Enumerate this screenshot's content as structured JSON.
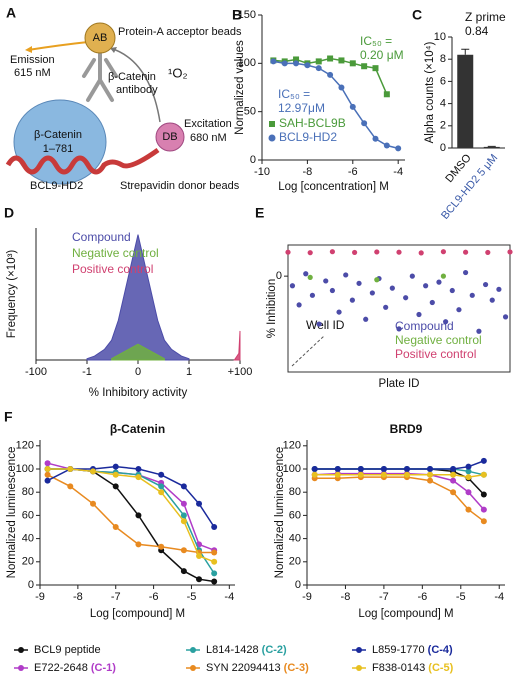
{
  "panel_labels": [
    "A",
    "B",
    "C",
    "D",
    "E",
    "F"
  ],
  "diagram": {
    "acceptor_bead": "AB",
    "acceptor_label": "Protein-A acceptor beads",
    "emission": [
      "Emission",
      "615 nM"
    ],
    "antibody": [
      "β-Catenin",
      "antibody"
    ],
    "singlet_oxygen": "¹O₂",
    "protein": [
      "β-Catenin",
      "1–781"
    ],
    "donor_bead": "DB",
    "excitation": [
      "Excitation",
      "680 nM"
    ],
    "peptide": "BCL9-HD2",
    "donor_label": "Strepavidin donor beads"
  },
  "chart_data": [
    {
      "type": "line",
      "xlabel": "Log [concentration] M",
      "ylabel": "Normalized values",
      "x": [
        -9.5,
        -9,
        -8.5,
        -8,
        -7.5,
        -7,
        -6.5,
        -6,
        -5.5,
        -5,
        -4.5,
        -4
      ],
      "series": [
        {
          "name": "SAH-BCL9B",
          "color": "#4a9a3a",
          "marker": "square",
          "values": [
            103,
            102,
            104,
            100,
            102,
            105,
            103,
            100,
            97,
            95,
            68,
            null
          ]
        },
        {
          "name": "BCL9-HD2",
          "color": "#4a70b8",
          "marker": "circle",
          "values": [
            102,
            100,
            100,
            98,
            95,
            88,
            75,
            55,
            38,
            22,
            15,
            12
          ]
        }
      ],
      "annotations": [
        {
          "text": [
            "IC₅₀ =",
            "0.20 μM"
          ],
          "color": "#4a9a3a"
        },
        {
          "text": [
            "IC₅₀ =",
            "12.97μM"
          ],
          "color": "#4a70b8"
        }
      ],
      "xlim": [
        -10,
        -3.7
      ],
      "xticks": [
        -10,
        -8,
        -6,
        -4
      ],
      "ylim": [
        0,
        150
      ],
      "yticks": [
        0,
        50,
        100,
        150
      ],
      "legend": "lower left"
    },
    {
      "type": "bar",
      "ylabel": "Alpha counts (×10⁴)",
      "categories": [
        "DMSO",
        "BCL9-HD2 5 μM"
      ],
      "category_colors": [
        "#111111",
        "#3a5aa8"
      ],
      "values": [
        8.4,
        0.1
      ],
      "errors": [
        0.5,
        0.05
      ],
      "color": "#333333",
      "annotations": [
        {
          "text": [
            "Z prime",
            "0.84"
          ],
          "color": "#111111"
        }
      ],
      "ylim": [
        0,
        10
      ],
      "yticks": [
        0,
        2,
        4,
        6,
        8,
        10
      ]
    },
    {
      "type": "area",
      "xlabel": "% Inhibitory activity",
      "ylabel": "Frequency (×10³)",
      "xscale": "symlog",
      "series": [
        {
          "name": "Compound",
          "color": "#4c4ca8",
          "x": [
            -1,
            -0.5,
            -0.2,
            -0.1,
            -0.05,
            0,
            0.05,
            0.1,
            0.2,
            0.5,
            1
          ],
          "values": [
            0.1,
            0.3,
            0.8,
            1.5,
            3,
            9.5,
            3,
            1.5,
            0.8,
            0.3,
            0.1
          ]
        },
        {
          "name": "Negative control",
          "color": "#70b040",
          "x": [
            -0.1,
            0,
            0.1
          ],
          "values": [
            0.1,
            1.2,
            0.1
          ]
        },
        {
          "name": "Positive control",
          "color": "#d04070",
          "x": [
            60,
            90,
            100
          ],
          "values": [
            0,
            0.5,
            2.2
          ]
        }
      ],
      "xlim": [
        -100,
        100
      ],
      "xticks": [
        -100,
        -1,
        0,
        1,
        {
          "value": 100,
          "label": "+100"
        }
      ],
      "ylim": [
        0,
        10
      ],
      "legend": "upper left"
    },
    {
      "type": "scatter",
      "xlabel": "Plate ID",
      "ylabel": "% Inhibition",
      "annotations": [
        {
          "text": [
            "Well ID"
          ],
          "color": "#111111"
        }
      ],
      "series": [
        {
          "name": "Compound",
          "color": "#4c4ca8",
          "x": [
            2,
            5,
            8,
            11,
            14,
            17,
            20,
            23,
            26,
            29,
            32,
            35,
            38,
            41,
            44,
            47,
            50,
            53,
            56,
            59,
            62,
            65,
            68,
            71,
            74,
            77,
            80,
            83,
            86,
            89,
            92,
            95,
            98
          ],
          "values": [
            -40,
            -120,
            10,
            -80,
            -200,
            -20,
            -60,
            -150,
            5,
            -100,
            -30,
            -180,
            -70,
            -10,
            -130,
            -50,
            -220,
            -90,
            0,
            -160,
            -40,
            -110,
            -25,
            -190,
            -60,
            -140,
            15,
            -80,
            -230,
            -35,
            -100,
            -55,
            -170
          ]
        },
        {
          "name": "Negative control",
          "color": "#70b040",
          "x": [
            10,
            40,
            70
          ],
          "values": [
            -5,
            -15,
            0
          ]
        },
        {
          "name": "Positive control",
          "color": "#d04070",
          "x": [
            0,
            10,
            20,
            30,
            40,
            50,
            60,
            70,
            80,
            90,
            100
          ],
          "values": [
            100,
            98,
            102,
            99,
            101,
            100,
            97,
            102,
            100,
            99,
            101
          ]
        }
      ],
      "xlim": [
        0,
        100
      ],
      "ylim": [
        -400,
        130
      ],
      "yticks": [
        0
      ],
      "legend": "lower right"
    },
    {
      "type": "line",
      "title": "β-Catenin",
      "xlabel": "Log [compound] M",
      "ylabel": "Normalized luminescence",
      "x": [
        -8.8,
        -8.2,
        -7.6,
        -7,
        -6.4,
        -5.8,
        -5.2,
        -4.8,
        -4.4
      ],
      "series": [
        {
          "name": "BCL9 peptide",
          "color": "#111111",
          "marker": "circle",
          "values": [
            100,
            100,
            98,
            85,
            60,
            30,
            12,
            5,
            3
          ]
        },
        {
          "name": "E722-2648 (C-1)",
          "color": "#b03cc8",
          "marker": "circle",
          "values": [
            105,
            100,
            98,
            97,
            95,
            88,
            70,
            35,
            30
          ]
        },
        {
          "name": "L814-1428 (C-2)",
          "color": "#2aa0a0",
          "marker": "circle",
          "values": [
            100,
            100,
            98,
            97,
            95,
            85,
            60,
            30,
            10
          ]
        },
        {
          "name": "SYN 22094413 (C-3)",
          "color": "#e88a20",
          "marker": "circle",
          "values": [
            95,
            85,
            70,
            50,
            35,
            33,
            30,
            28,
            28
          ]
        },
        {
          "name": "L859-1770 (C-4)",
          "color": "#1a2a9c",
          "marker": "circle",
          "values": [
            90,
            100,
            100,
            102,
            100,
            95,
            85,
            70,
            50
          ]
        },
        {
          "name": "F838-0143 (C-5)",
          "color": "#e8c020",
          "marker": "circle",
          "values": [
            100,
            100,
            98,
            95,
            93,
            80,
            55,
            25,
            20
          ]
        }
      ],
      "xlim": [
        -9,
        -3.85
      ],
      "xticks": [
        -9,
        -8,
        -7,
        -6,
        -5,
        -4
      ],
      "ylim": [
        0,
        125
      ],
      "yticks": [
        0,
        20,
        40,
        60,
        80,
        100,
        120
      ],
      "legend": "below"
    },
    {
      "type": "line",
      "title": "BRD9",
      "xlabel": "Log [compound] M",
      "ylabel": "Normalized luminescence",
      "x": [
        -8.8,
        -8.2,
        -7.6,
        -7,
        -6.4,
        -5.8,
        -5.2,
        -4.8,
        -4.4
      ],
      "series": [
        {
          "color": "#111111",
          "marker": "circle",
          "values": [
            100,
            100,
            100,
            100,
            100,
            100,
            98,
            92,
            78
          ]
        },
        {
          "color": "#b03cc8",
          "marker": "circle",
          "values": [
            95,
            96,
            96,
            96,
            96,
            95,
            90,
            80,
            65
          ]
        },
        {
          "color": "#2aa0a0",
          "marker": "circle",
          "values": [
            100,
            100,
            100,
            100,
            100,
            100,
            100,
            98,
            95
          ]
        },
        {
          "color": "#e88a20",
          "marker": "circle",
          "values": [
            92,
            92,
            93,
            93,
            93,
            90,
            80,
            65,
            55
          ]
        },
        {
          "color": "#1a2a9c",
          "marker": "circle",
          "values": [
            100,
            100,
            100,
            100,
            100,
            100,
            100,
            102,
            107
          ]
        },
        {
          "color": "#e8c020",
          "marker": "circle",
          "values": [
            95,
            95,
            95,
            95,
            95,
            95,
            95,
            93,
            95
          ]
        }
      ],
      "xlim": [
        -9,
        -3.85
      ],
      "xticks": [
        -9,
        -8,
        -7,
        -6,
        -5,
        -4
      ],
      "ylim": [
        0,
        125
      ],
      "yticks": [
        0,
        20,
        40,
        60,
        80,
        100,
        120
      ]
    }
  ]
}
